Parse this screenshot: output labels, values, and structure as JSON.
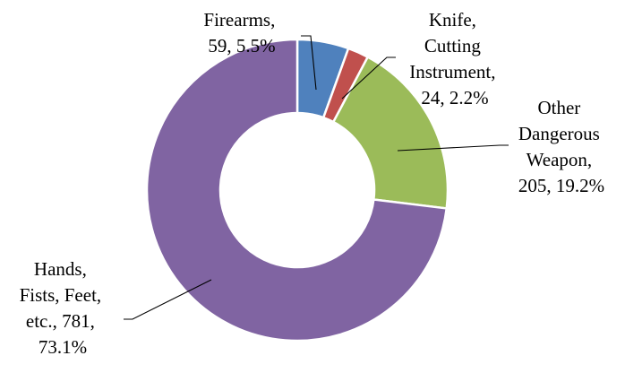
{
  "chart_data": {
    "type": "pie",
    "donut": true,
    "categories": [
      "Firearms",
      "Knife, Cutting Instrument",
      "Other Dangerous Weapon",
      "Hands, Fists, Feet, etc."
    ],
    "values": [
      59,
      24,
      205,
      781
    ],
    "percentages": [
      5.5,
      2.2,
      19.2,
      73.1
    ],
    "colors": [
      "#4F81BD",
      "#C0504D",
      "#9BBB59",
      "#8064A2"
    ],
    "data_labels": [
      [
        "Firearms,",
        "59, 5.5%"
      ],
      [
        "Knife,",
        "Cutting",
        "Instrument,",
        "24, 2.2%"
      ],
      [
        "Other",
        "Dangerous",
        "Weapon,",
        "205, 19.2%"
      ],
      [
        "Hands,",
        "Fists, Feet,",
        "etc., 781,",
        "73.1%"
      ]
    ],
    "legend": "none"
  }
}
